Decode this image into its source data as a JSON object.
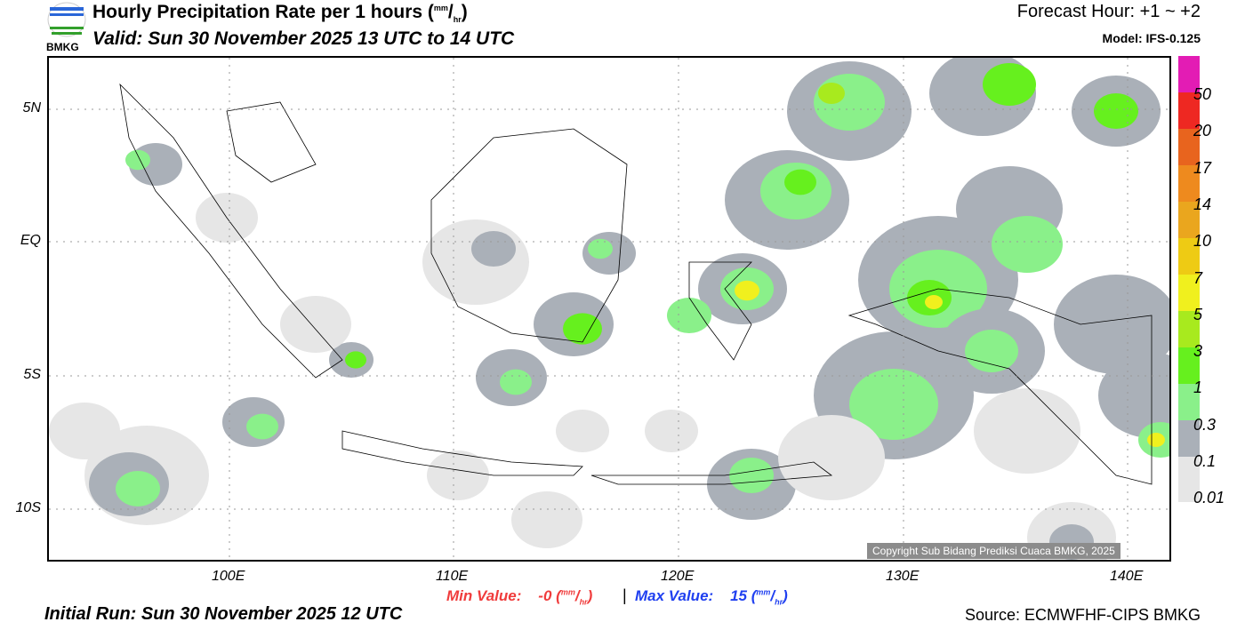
{
  "header": {
    "title": "Hourly Precipitation Rate per 1 hours (",
    "unit_num": "mm",
    "unit_den": "hr",
    "title_end": ")",
    "valid": "Valid: Sun 30 November 2025 13 UTC to 14 UTC",
    "forecast_hour": "Forecast Hour: +1 ~ +2",
    "model": "Model: IFS-0.125",
    "logo_text": "BMKG"
  },
  "map": {
    "lon_ticks": [
      "100E",
      "110E",
      "120E",
      "130E",
      "140E"
    ],
    "lat_ticks": [
      "5N",
      "EQ",
      "5S",
      "10S"
    ],
    "copyright": "Copyright Sub Bidang Prediksi Cuaca BMKG, 2025"
  },
  "legend": {
    "levels": [
      "50",
      "20",
      "17",
      "14",
      "10",
      "7",
      "5",
      "3",
      "1",
      "0.3",
      "0.1",
      "0.01"
    ],
    "colors": [
      "#e31cb4",
      "#ee2822",
      "#e8641e",
      "#ee8a1e",
      "#eaa61e",
      "#eecb14",
      "#f0f01e",
      "#a8ea1e",
      "#66f01e",
      "#8af08a",
      "#aab0b8",
      "#e6e6e6"
    ]
  },
  "footer": {
    "min_label": "Min Value:",
    "min_value": "-0",
    "max_label": "Max Value:",
    "max_value": "15",
    "separator": "|",
    "unit_num": "mm",
    "unit_den": "hr",
    "initial_run": "Initial Run: Sun 30 November 2025 12 UTC",
    "source": "Source: ECMWFHF-CIPS BMKG"
  }
}
